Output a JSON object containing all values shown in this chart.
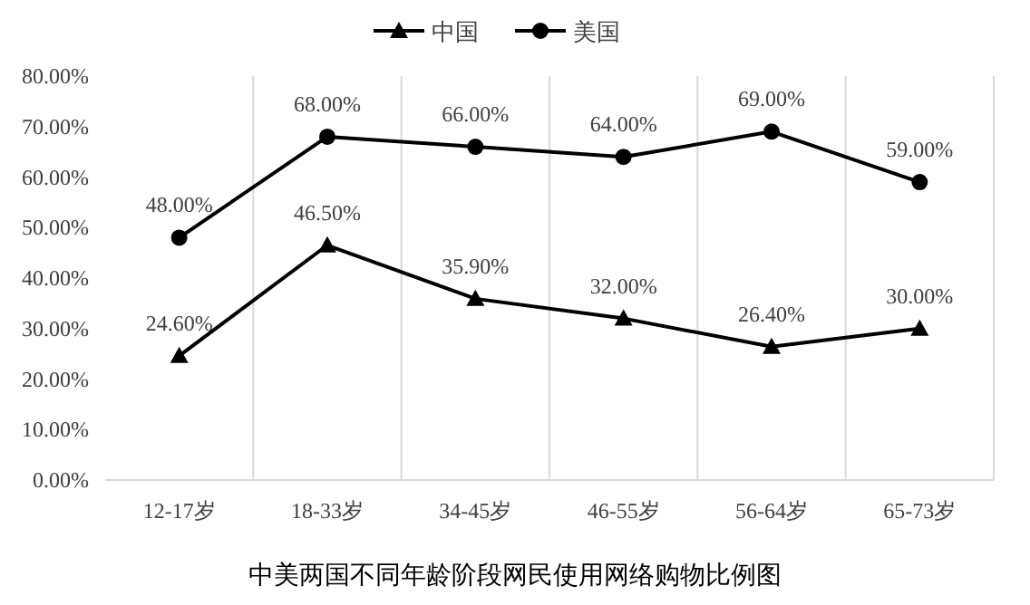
{
  "chart_data": {
    "type": "line",
    "title": "中美两国不同年龄阶段网民使用网络购物比例图",
    "categories": [
      "12-17岁",
      "18-33岁",
      "34-45岁",
      "46-55岁",
      "56-64岁",
      "65-73岁"
    ],
    "series": [
      {
        "name": "中国",
        "color": "#000000",
        "marker": "triangle",
        "values": [
          24.6,
          46.5,
          35.9,
          32,
          26.4,
          30
        ],
        "value_labels": [
          "24.60%",
          "46.50%",
          "35.90%",
          "32.00%",
          "26.40%",
          "30.00%"
        ]
      },
      {
        "name": "美国",
        "color": "#000000",
        "marker": "circle",
        "values": [
          48,
          68,
          66,
          64,
          69,
          59
        ],
        "value_labels": [
          "48.00%",
          "68.00%",
          "66.00%",
          "64.00%",
          "69.00%",
          "59.00%"
        ]
      }
    ],
    "ylim": [
      0,
      80
    ],
    "yticks": [
      {
        "value": 0,
        "label": "0.00%"
      },
      {
        "value": 10,
        "label": "10.00%"
      },
      {
        "value": 20,
        "label": "20.00%"
      },
      {
        "value": 30,
        "label": "30.00%"
      },
      {
        "value": 40,
        "label": "40.00%"
      },
      {
        "value": 50,
        "label": "50.00%"
      },
      {
        "value": 60,
        "label": "60.00%"
      },
      {
        "value": 70,
        "label": "70.00%"
      },
      {
        "value": 80,
        "label": "80.00%"
      }
    ],
    "grid": "x",
    "legend": "top"
  }
}
